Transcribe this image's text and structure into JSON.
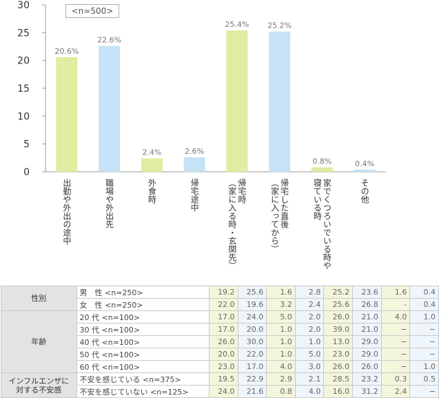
{
  "n_label": "<n=500>",
  "chart_data": {
    "type": "bar",
    "categories": [
      [
        "出勤や外出の途中"
      ],
      [
        "職場や外出先"
      ],
      [
        "外食時"
      ],
      [
        "帰宅途中"
      ],
      [
        "帰宅時",
        "（家に入る時・玄関先）"
      ],
      [
        "帰宅した直後",
        "（家に入ってから）"
      ],
      [
        "家でくつろいでいる時や",
        "寝ている時"
      ],
      [
        "その他"
      ]
    ],
    "values": [
      20.6,
      22.6,
      2.4,
      2.6,
      25.4,
      25.2,
      0.8,
      0.4
    ],
    "value_labels": [
      "20.6%",
      "22.6%",
      "2.4%",
      "2.6%",
      "25.4%",
      "25.2%",
      "0.8%",
      "0.4%"
    ],
    "bar_colors": [
      "#e0eca0",
      "#c5e2f6",
      "#e0eca0",
      "#c5e2f6",
      "#e0eca0",
      "#c5e2f6",
      "#e0eca0",
      "#c5e2f6"
    ],
    "yticks": [
      "0",
      "5",
      "10",
      "15",
      "20",
      "25",
      "30"
    ],
    "ylim": [
      0,
      30
    ]
  },
  "table": {
    "column_colors": [
      "#f4f6dc",
      "#eef5fb",
      "#f4f6dc",
      "#eef5fb",
      "#f4f6dc",
      "#eef5fb",
      "#f4f6dc",
      "#eef5fb"
    ],
    "groups": [
      {
        "label": [
          "性別"
        ],
        "rows": [
          {
            "label": "男　性 <n=250>",
            "values": [
              "19.2",
              "25.6",
              "1.6",
              "2.8",
              "25.2",
              "23.6",
              "1.6",
              "0.4"
            ]
          },
          {
            "label": "女　性 <n=250>",
            "values": [
              "22.0",
              "19.6",
              "3.2",
              "2.4",
              "25.6",
              "26.8",
              "-",
              "0.4"
            ]
          }
        ]
      },
      {
        "label": [
          "年齢"
        ],
        "rows": [
          {
            "label": "20 代 <n=100>",
            "values": [
              "17.0",
              "24.0",
              "5.0",
              "2.0",
              "26.0",
              "21.0",
              "4.0",
              "1.0"
            ]
          },
          {
            "label": "30 代 <n=100>",
            "values": [
              "17.0",
              "20.0",
              "1.0",
              "2.0",
              "39.0",
              "21.0",
              "−",
              "−"
            ]
          },
          {
            "label": "40 代 <n=100>",
            "values": [
              "26.0",
              "30.0",
              "1.0",
              "1.0",
              "13.0",
              "29.0",
              "−",
              "−"
            ]
          },
          {
            "label": "50 代 <n=100>",
            "values": [
              "20.0",
              "22.0",
              "1.0",
              "5.0",
              "23.0",
              "29.0",
              "−",
              "−"
            ]
          },
          {
            "label": "60 代 <n=100>",
            "values": [
              "23.0",
              "17.0",
              "4.0",
              "3.0",
              "26.0",
              "26.0",
              "−",
              "1.0"
            ]
          }
        ]
      },
      {
        "label": [
          "インフルエンザに",
          "対する不安感"
        ],
        "rows": [
          {
            "label": "不安を感じている <n=375>",
            "values": [
              "19.5",
              "22.9",
              "2.9",
              "2.1",
              "28.5",
              "23.2",
              "0.3",
              "0.5"
            ]
          },
          {
            "label": "不安を感じていない <n=125>",
            "values": [
              "24.0",
              "21.6",
              "0.8",
              "4.0",
              "16.0",
              "31.2",
              "2.4",
              "−"
            ]
          }
        ]
      }
    ]
  }
}
